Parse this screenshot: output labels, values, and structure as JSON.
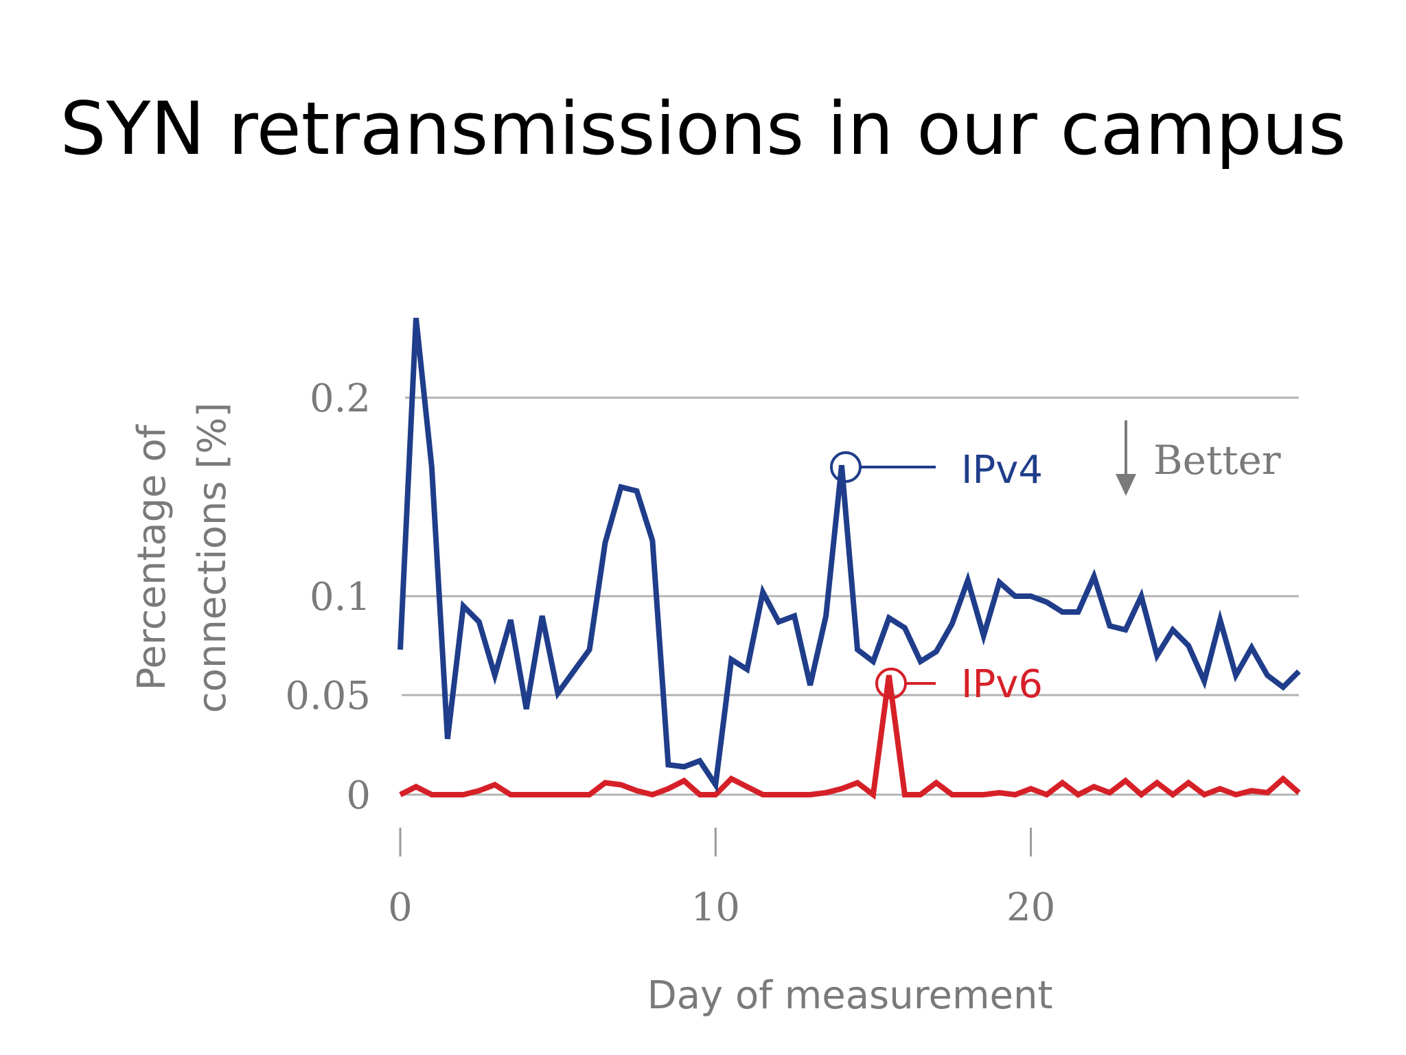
{
  "slide": {
    "title": "SYN retransmissions in our campus"
  },
  "chart_data": {
    "type": "line",
    "title": "SYN retransmissions in our campus",
    "xlabel": "Day of measurement",
    "ylabel_lines": [
      "Percentage of",
      "connections [%]"
    ],
    "xlim": [
      0,
      28.5
    ],
    "ylim": [
      0,
      0.22
    ],
    "x_ticks": [
      0,
      10,
      20
    ],
    "y_ticks": [
      0,
      0.05,
      0.1,
      0.2
    ],
    "grid": "horizontal",
    "annotation": "Better",
    "series": [
      {
        "name": "IPv4",
        "color": "#1f3d8a",
        "x": [
          0,
          0.5,
          1,
          1.5,
          2,
          2.5,
          3,
          3.5,
          4,
          4.5,
          5,
          5.5,
          6,
          6.5,
          7,
          7.5,
          8,
          8.5,
          9,
          9.5,
          10,
          10.5,
          11,
          11.5,
          12,
          12.5,
          13,
          13.5,
          14,
          14.5,
          15,
          15.5,
          16,
          16.5,
          17,
          17.5,
          18,
          18.5,
          19,
          19.5,
          20,
          20.5,
          21,
          21.5,
          22,
          22.5,
          23,
          23.5,
          24,
          24.5,
          25,
          25.5,
          26,
          26.5,
          27,
          27.5,
          28,
          28.5
        ],
        "values": [
          0.073,
          0.24,
          0.165,
          0.028,
          0.095,
          0.087,
          0.06,
          0.088,
          0.043,
          0.09,
          0.051,
          0.062,
          0.073,
          0.127,
          0.155,
          0.153,
          0.128,
          0.015,
          0.014,
          0.017,
          0.005,
          0.068,
          0.063,
          0.102,
          0.087,
          0.09,
          0.055,
          0.09,
          0.166,
          0.073,
          0.067,
          0.089,
          0.084,
          0.067,
          0.072,
          0.086,
          0.108,
          0.08,
          0.107,
          0.1,
          0.1,
          0.097,
          0.092,
          0.092,
          0.11,
          0.085,
          0.083,
          0.1,
          0.07,
          0.083,
          0.075,
          0.057,
          0.088,
          0.06,
          0.074,
          0.06,
          0.054,
          0.062
        ]
      },
      {
        "name": "IPv6",
        "color": "#d62028",
        "x": [
          0,
          0.5,
          1,
          1.5,
          2,
          2.5,
          3,
          3.5,
          4,
          4.5,
          5,
          5.5,
          6,
          6.5,
          7,
          7.5,
          8,
          8.5,
          9,
          9.5,
          10,
          10.5,
          11,
          11.5,
          12,
          12.5,
          13,
          13.5,
          14,
          14.5,
          15,
          15.5,
          16,
          16.5,
          17,
          17.5,
          18,
          18.5,
          19,
          19.5,
          20,
          20.5,
          21,
          21.5,
          22,
          22.5,
          23,
          23.5,
          24,
          24.5,
          25,
          25.5,
          26,
          26.5,
          27,
          27.5,
          28,
          28.5
        ],
        "values": [
          0,
          0.004,
          0,
          0,
          0,
          0.002,
          0.005,
          0,
          0,
          0,
          0,
          0,
          0,
          0.006,
          0.005,
          0.002,
          0,
          0.003,
          0.007,
          0,
          0,
          0.008,
          0.004,
          0,
          0,
          0,
          0,
          0.001,
          0.003,
          0.006,
          0,
          0.06,
          0,
          0,
          0.006,
          0,
          0,
          0,
          0.001,
          0,
          0.003,
          0,
          0.006,
          0,
          0.004,
          0.001,
          0.007,
          0,
          0.006,
          0,
          0.006,
          0,
          0.003,
          0,
          0.002,
          0.001,
          0.008,
          0.001
        ]
      }
    ]
  }
}
